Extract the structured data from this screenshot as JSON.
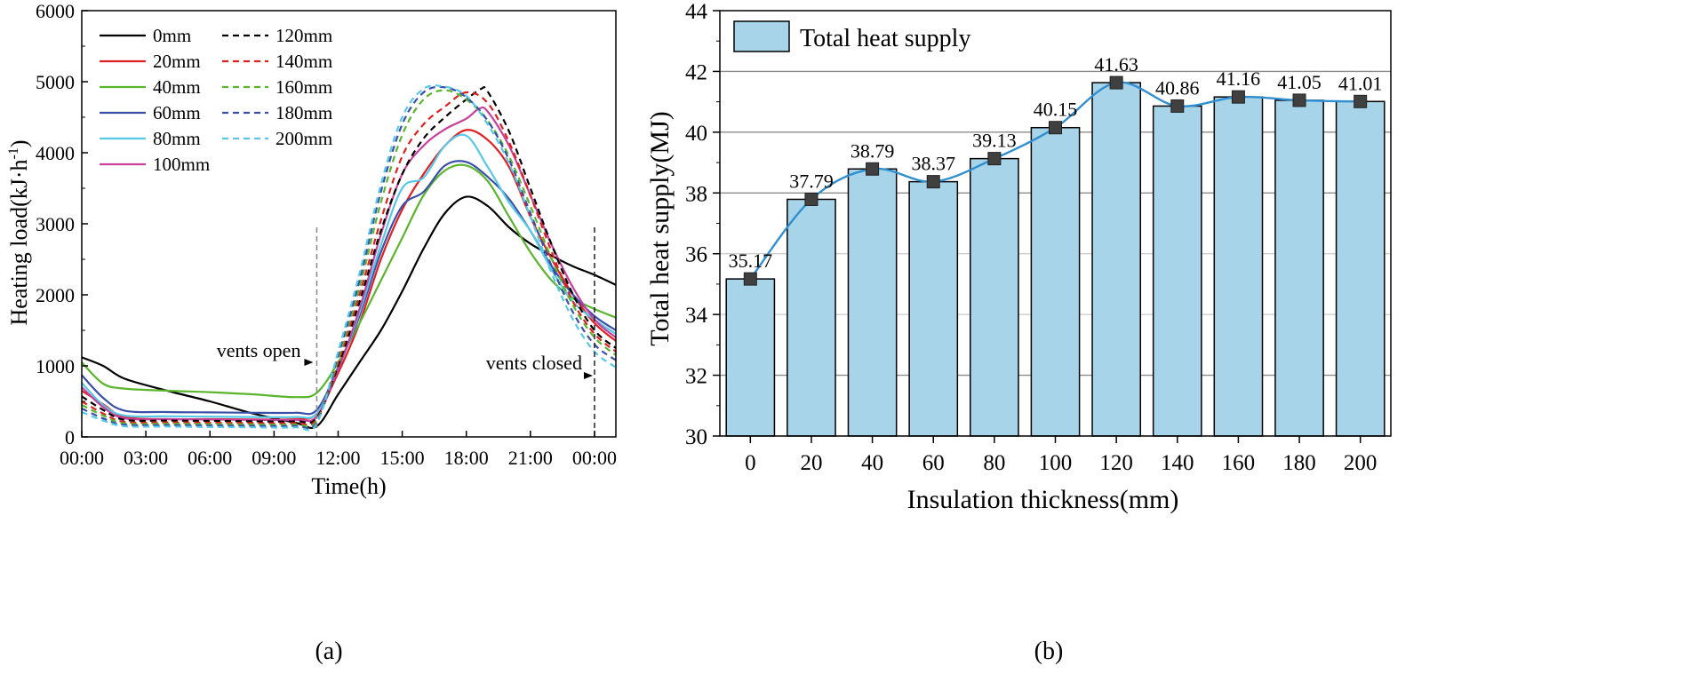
{
  "chart_data": [
    {
      "id": "a",
      "type": "line",
      "caption": "(a)",
      "xlabel": "Time(h)",
      "ylabel": "Heating load(kJ·h",
      "ylabel_sup": "-1",
      "ylabel_close": ")",
      "xlim": [
        0,
        25
      ],
      "ylim": [
        0,
        6000
      ],
      "xticks": [
        0,
        3,
        6,
        9,
        12,
        15,
        18,
        21,
        24
      ],
      "xtick_labels": [
        "00:00",
        "03:00",
        "06:00",
        "09:00",
        "12:00",
        "15:00",
        "18:00",
        "21:00",
        "00:00"
      ],
      "yticks": [
        0,
        1000,
        2000,
        3000,
        4000,
        5000,
        6000
      ],
      "ytick_labels": [
        "0",
        "1000",
        "2000",
        "3000",
        "4000",
        "5000",
        "6000"
      ],
      "annotations": [
        {
          "text": "vents open",
          "x": 11
        },
        {
          "text": "vents closed",
          "x": 24
        }
      ],
      "series": [
        {
          "name": "0mm",
          "color": "#000000",
          "dash": false,
          "x": [
            0,
            1,
            2,
            4,
            6,
            8,
            10,
            11,
            12,
            13,
            14,
            15,
            16,
            17,
            18,
            19,
            20,
            21,
            22,
            23,
            24,
            25
          ],
          "y": [
            1120,
            1000,
            820,
            650,
            500,
            330,
            200,
            150,
            600,
            1050,
            1500,
            2050,
            2650,
            3150,
            3380,
            3250,
            2950,
            2720,
            2550,
            2400,
            2280,
            2140
          ]
        },
        {
          "name": "20mm",
          "color": "#e02020",
          "dash": false,
          "x": [
            0,
            1,
            2,
            4,
            6,
            8,
            10,
            11,
            12,
            13,
            14,
            15,
            16,
            17,
            18,
            19,
            20,
            21,
            22,
            23,
            24,
            25
          ],
          "y": [
            650,
            460,
            280,
            250,
            250,
            245,
            250,
            330,
            900,
            1600,
            2500,
            3200,
            3700,
            4100,
            4320,
            4180,
            3800,
            3100,
            2500,
            2000,
            1600,
            1350
          ]
        },
        {
          "name": "40mm",
          "color": "#5ab52c",
          "dash": false,
          "x": [
            0,
            1,
            2,
            4,
            6,
            8,
            10,
            11,
            12,
            13,
            14,
            15,
            16,
            17,
            18,
            19,
            20,
            21,
            22,
            23,
            24,
            25
          ],
          "y": [
            1050,
            750,
            680,
            650,
            630,
            600,
            560,
            620,
            1050,
            1600,
            2200,
            2800,
            3400,
            3750,
            3820,
            3600,
            3100,
            2600,
            2200,
            1950,
            1800,
            1680
          ]
        },
        {
          "name": "60mm",
          "color": "#3a4fa8",
          "dash": false,
          "x": [
            0,
            1,
            2,
            4,
            6,
            8,
            10,
            11,
            12,
            13,
            14,
            15,
            16,
            17,
            18,
            19,
            20,
            21,
            22,
            23,
            24,
            25
          ],
          "y": [
            870,
            550,
            370,
            350,
            345,
            340,
            340,
            380,
            980,
            1700,
            2600,
            3250,
            3450,
            3820,
            3870,
            3660,
            3350,
            2900,
            2400,
            2000,
            1700,
            1500
          ]
        },
        {
          "name": "80mm",
          "color": "#57c8e6",
          "dash": false,
          "x": [
            0,
            1,
            2,
            4,
            6,
            8,
            10,
            11,
            12,
            13,
            14,
            15,
            16,
            17,
            18,
            19,
            20,
            21,
            22,
            23,
            24,
            25
          ],
          "y": [
            760,
            450,
            300,
            290,
            285,
            280,
            280,
            330,
            950,
            1750,
            2700,
            3500,
            3650,
            4100,
            4240,
            3800,
            3300,
            2900,
            2350,
            1900,
            1650,
            1450
          ]
        },
        {
          "name": "100mm",
          "color": "#c8409c",
          "dash": false,
          "x": [
            0,
            1,
            2,
            4,
            6,
            8,
            10,
            11,
            12,
            13,
            14,
            15,
            16,
            17,
            18,
            18.6,
            19,
            20,
            21,
            22,
            23,
            24,
            25
          ],
          "y": [
            700,
            420,
            260,
            250,
            245,
            240,
            240,
            290,
            950,
            1800,
            2850,
            3700,
            4100,
            4330,
            4480,
            4620,
            4580,
            4100,
            3400,
            2700,
            2100,
            1650,
            1400
          ]
        },
        {
          "name": "120mm",
          "color": "#000000",
          "dash": true,
          "x": [
            0,
            1,
            2,
            4,
            6,
            8,
            10,
            11,
            12,
            13,
            14,
            15,
            16,
            17,
            18,
            18.7,
            19,
            20,
            21,
            22,
            23,
            24,
            25
          ],
          "y": [
            570,
            380,
            240,
            230,
            225,
            220,
            220,
            270,
            1000,
            1900,
            2900,
            3700,
            4200,
            4500,
            4750,
            4900,
            4860,
            4300,
            3500,
            2700,
            2000,
            1500,
            1250
          ]
        },
        {
          "name": "140mm",
          "color": "#e02020",
          "dash": true,
          "x": [
            0,
            1,
            2,
            4,
            6,
            8,
            10,
            11,
            12,
            13,
            14,
            15,
            16,
            17,
            18,
            19,
            20,
            21,
            22,
            23,
            24,
            25
          ],
          "y": [
            500,
            330,
            210,
            205,
            200,
            195,
            195,
            245,
            1050,
            2000,
            3050,
            3950,
            4400,
            4650,
            4850,
            4700,
            4150,
            3400,
            2600,
            1900,
            1450,
            1200
          ]
        },
        {
          "name": "160mm",
          "color": "#5ab52c",
          "dash": true,
          "x": [
            0,
            1,
            2,
            4,
            6,
            8,
            10,
            11,
            12,
            13,
            14,
            15,
            16,
            17,
            18,
            19,
            20,
            21,
            22,
            23,
            24,
            25
          ],
          "y": [
            450,
            300,
            190,
            185,
            180,
            175,
            175,
            225,
            1100,
            2100,
            3300,
            4250,
            4750,
            4880,
            4750,
            4450,
            3950,
            3250,
            2500,
            1850,
            1400,
            1150
          ]
        },
        {
          "name": "180mm",
          "color": "#3a4fa8",
          "dash": true,
          "x": [
            0,
            1,
            2,
            4,
            6,
            8,
            10,
            11,
            12,
            13,
            14,
            15,
            16,
            17,
            18,
            19,
            20,
            21,
            22,
            23,
            24,
            25
          ],
          "y": [
            400,
            260,
            170,
            165,
            160,
            155,
            155,
            205,
            1150,
            2200,
            3450,
            4400,
            4850,
            4920,
            4780,
            4450,
            3900,
            3150,
            2400,
            1750,
            1300,
            1080
          ]
        },
        {
          "name": "200mm",
          "color": "#57c8e6",
          "dash": true,
          "x": [
            0,
            1,
            2,
            4,
            6,
            8,
            10,
            11,
            12,
            13,
            14,
            15,
            16,
            17,
            18,
            19,
            20,
            21,
            22,
            23,
            24,
            25
          ],
          "y": [
            350,
            230,
            150,
            145,
            140,
            135,
            135,
            185,
            1200,
            2300,
            3550,
            4500,
            4900,
            4930,
            4800,
            4400,
            3850,
            3100,
            2300,
            1650,
            1200,
            980
          ]
        }
      ]
    },
    {
      "id": "b",
      "type": "bar",
      "caption": "(b)",
      "xlabel": "Insulation thickness(mm)",
      "ylabel": "Total heat supply(MJ)",
      "legend": "Total heat supply",
      "categories": [
        "0",
        "20",
        "40",
        "60",
        "80",
        "100",
        "120",
        "140",
        "160",
        "180",
        "200"
      ],
      "values": [
        35.17,
        37.79,
        38.79,
        38.37,
        39.13,
        40.15,
        41.63,
        40.86,
        41.16,
        41.05,
        41.01
      ],
      "value_labels": [
        "35.17",
        "37.79",
        "38.79",
        "38.37",
        "39.13",
        "40.15",
        "41.63",
        "40.86",
        "41.16",
        "41.05",
        "41.01"
      ],
      "ylim": [
        30,
        44
      ],
      "yticks": [
        30,
        32,
        34,
        36,
        38,
        40,
        42,
        44
      ],
      "ytick_labels": [
        "30",
        "32",
        "34",
        "36",
        "38",
        "40",
        "42",
        "44"
      ],
      "bar_color": "#a8d4ea",
      "line_color": "#2f8fd0",
      "marker_color": "#404040",
      "grid": true
    }
  ]
}
